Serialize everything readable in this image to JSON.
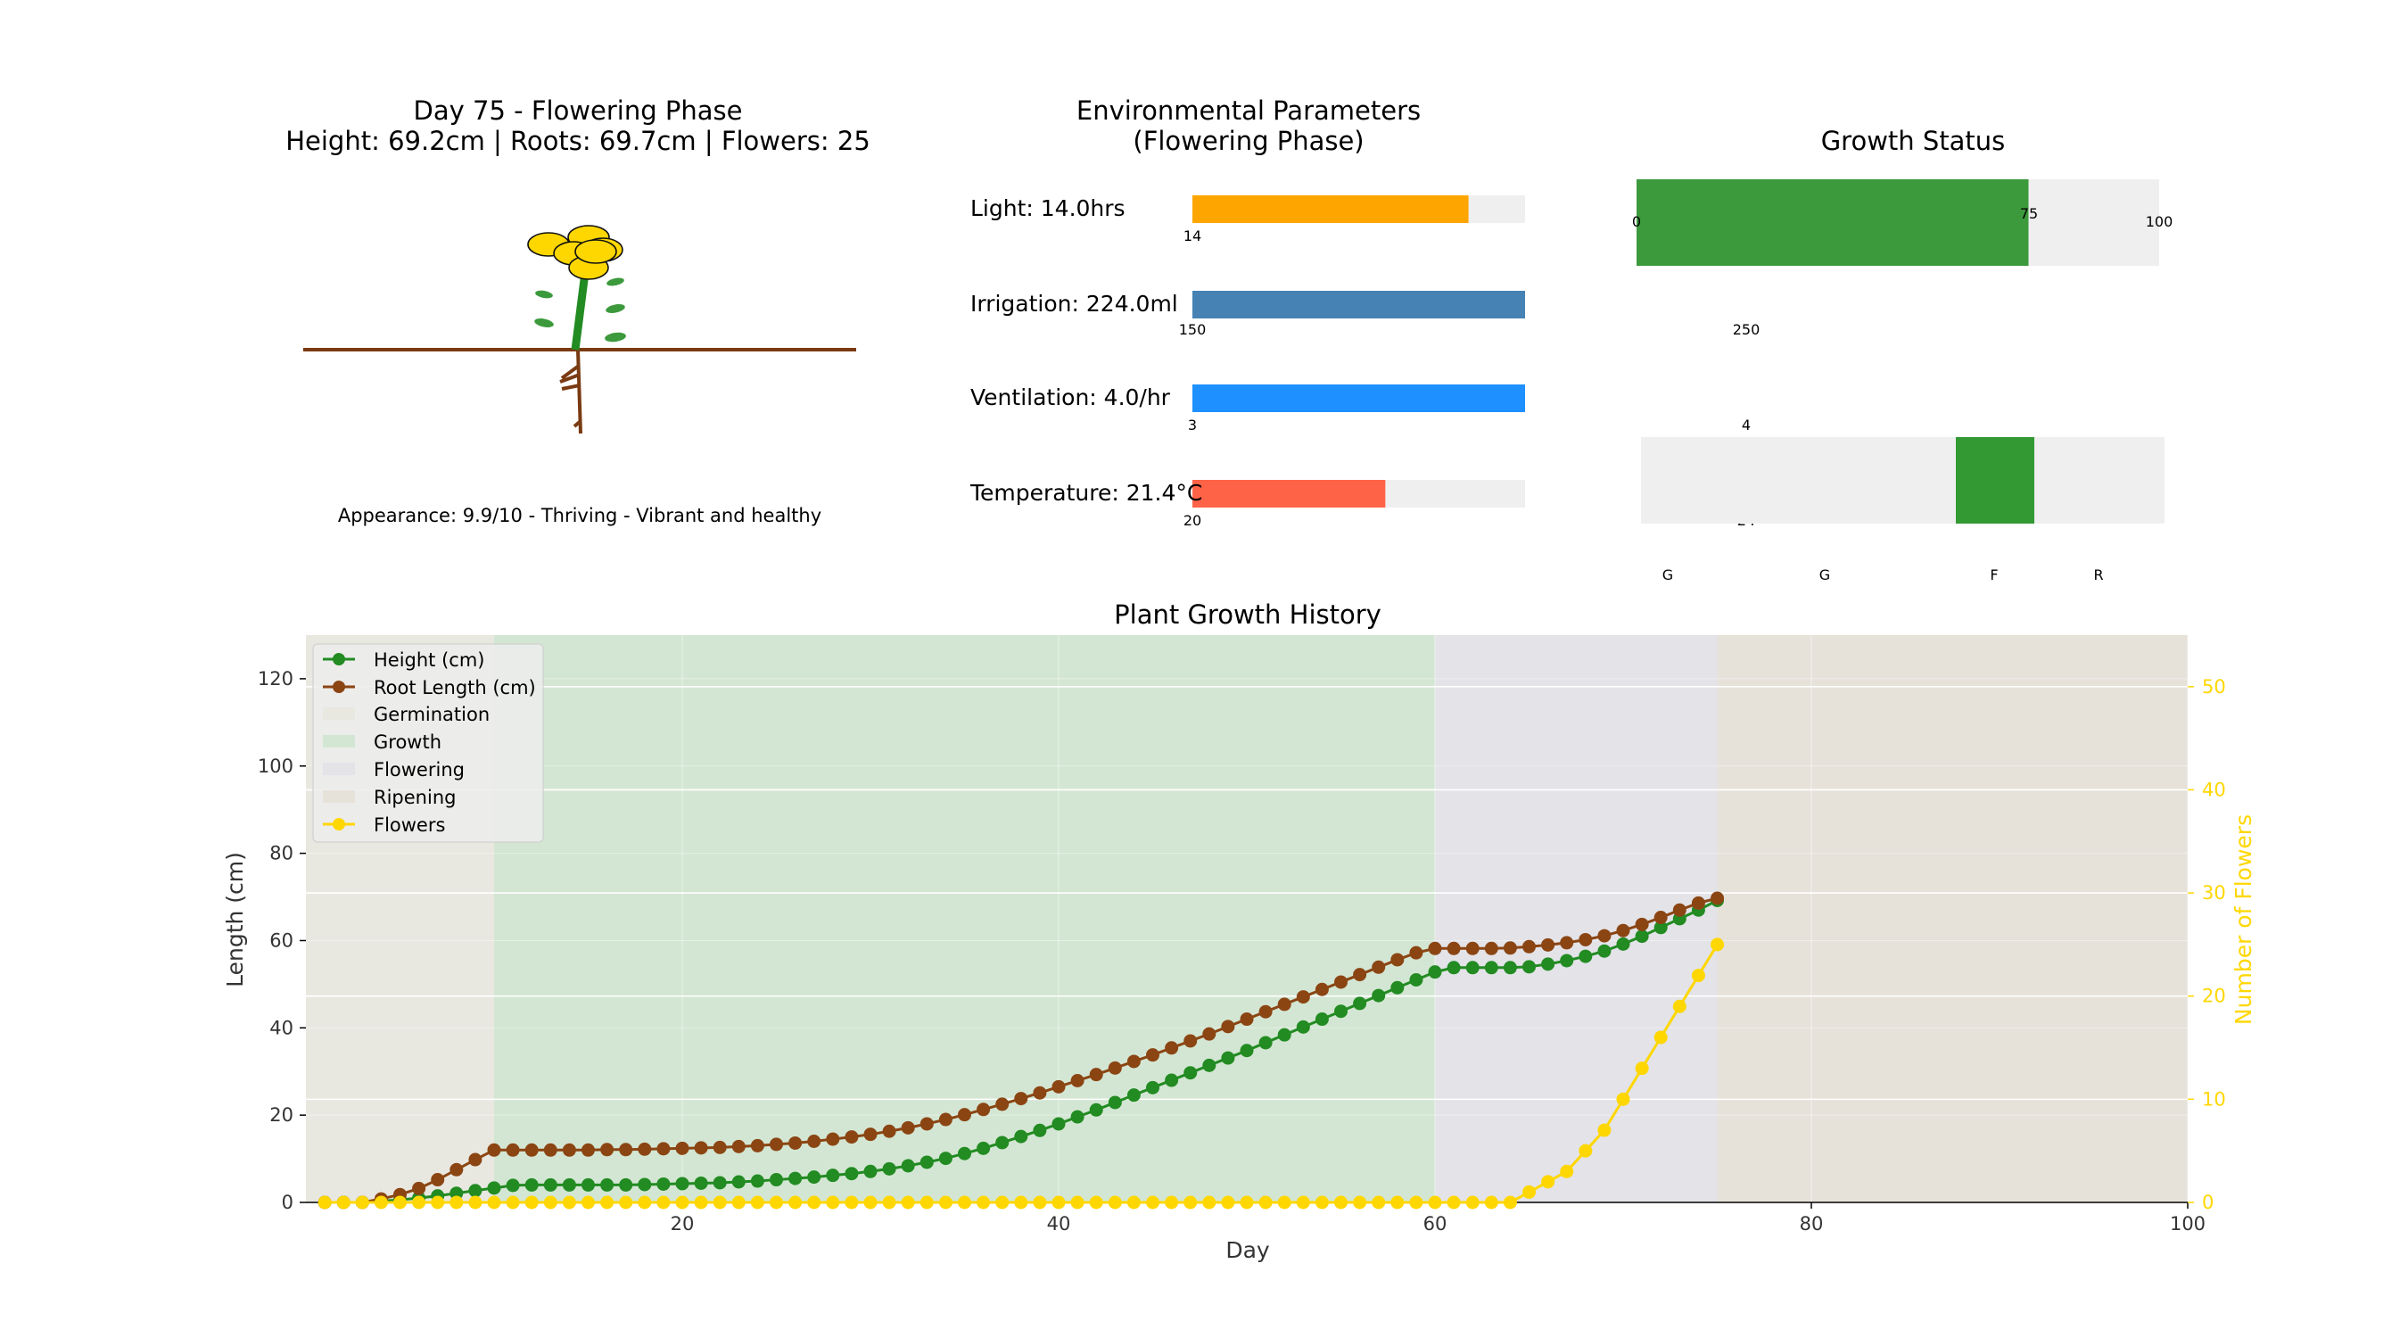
{
  "plant_panel": {
    "title_line1": "Day 75 - Flowering Phase",
    "title_line2": "Height: 69.2cm | Roots: 69.7cm | Flowers: 25",
    "appearance": "Appearance: 9.9/10 - Thriving - Vibrant and healthy"
  },
  "env_panel": {
    "title_line1": "Environmental Parameters",
    "title_line2": "(Flowering Phase)",
    "bars": [
      {
        "label": "Light: 14.0hrs",
        "min_label": "14",
        "value": 14.0,
        "fill_fraction": 0.83,
        "color": "#ffa500"
      },
      {
        "label": "Irrigation: 224.0ml",
        "min_label": "150",
        "mid_label": "250",
        "value": 224.0,
        "fill_fraction": 1.0,
        "color": "#4682b4"
      },
      {
        "label": "Ventilation: 4.0/hr",
        "min_label": "3",
        "mid_label": "4",
        "value": 4.0,
        "fill_fraction": 1.0,
        "color": "#1e90ff"
      },
      {
        "label": "Temperature: 21.4°C",
        "min_label": "20",
        "mid_label": "24",
        "value": 21.4,
        "fill_fraction": 0.58,
        "color": "#ff6347"
      }
    ]
  },
  "status_panel": {
    "title": "Growth Status",
    "progress": {
      "value": 75,
      "max": 100,
      "tick_labels": [
        "0",
        "75",
        "100"
      ],
      "color": "#3c9a3c"
    },
    "phase_labels": [
      "G",
      "G",
      "F",
      "R"
    ],
    "active_phase_index": 2,
    "active_color": "#339933"
  },
  "chart_data": {
    "type": "line",
    "title": "Plant Growth History",
    "xlabel": "Day",
    "ylabel": "Length (cm)",
    "y2label": "Number of Flowers",
    "xlim": [
      0,
      100
    ],
    "ylim": [
      0,
      130
    ],
    "y2lim": [
      0,
      55
    ],
    "xticks": [
      20,
      40,
      60,
      80,
      100
    ],
    "yticks": [
      0,
      20,
      40,
      60,
      80,
      100,
      120
    ],
    "y2ticks": [
      0,
      10,
      20,
      30,
      40,
      50
    ],
    "grid": true,
    "legend_position": "top-left",
    "phases": [
      {
        "name": "Germination",
        "start": 0,
        "end": 10,
        "color": "#e8e8e0"
      },
      {
        "name": "Growth",
        "start": 10,
        "end": 60,
        "color": "#d3e6d3"
      },
      {
        "name": "Flowering",
        "start": 60,
        "end": 75,
        "color": "#e3e3e8"
      },
      {
        "name": "Ripening",
        "start": 75,
        "end": 100,
        "color": "#e6e2da"
      }
    ],
    "series": [
      {
        "name": "Height (cm)",
        "axis": "left",
        "color": "#228b22",
        "x": [
          1,
          2,
          3,
          4,
          5,
          6,
          7,
          8,
          9,
          10,
          11,
          12,
          13,
          14,
          15,
          16,
          17,
          18,
          19,
          20,
          21,
          22,
          23,
          24,
          25,
          26,
          27,
          28,
          29,
          30,
          31,
          32,
          33,
          34,
          35,
          36,
          37,
          38,
          39,
          40,
          41,
          42,
          43,
          44,
          45,
          46,
          47,
          48,
          49,
          50,
          51,
          52,
          53,
          54,
          55,
          56,
          57,
          58,
          59,
          60,
          61,
          62,
          63,
          64,
          65,
          66,
          67,
          68,
          69,
          70,
          71,
          72,
          73,
          74,
          75
        ],
        "values": [
          0,
          0,
          0,
          0.3,
          0.6,
          1.0,
          1.5,
          2.1,
          2.7,
          3.3,
          3.9,
          4.0,
          4.0,
          4.0,
          4.0,
          4.0,
          4.0,
          4.1,
          4.2,
          4.3,
          4.4,
          4.5,
          4.7,
          4.9,
          5.2,
          5.5,
          5.8,
          6.2,
          6.6,
          7.1,
          7.7,
          8.4,
          9.2,
          10.1,
          11.2,
          12.4,
          13.7,
          15.1,
          16.5,
          18.0,
          19.6,
          21.2,
          22.9,
          24.6,
          26.3,
          28.0,
          29.7,
          31.4,
          33.1,
          34.8,
          36.6,
          38.4,
          40.2,
          42.0,
          43.8,
          45.6,
          47.4,
          49.2,
          51.0,
          52.8,
          53.8,
          53.8,
          53.8,
          53.8,
          54.0,
          54.6,
          55.4,
          56.4,
          57.6,
          59.2,
          61.0,
          63.0,
          65.0,
          67.0,
          69.2
        ]
      },
      {
        "name": "Root Length (cm)",
        "axis": "left",
        "color": "#8b4513",
        "x": [
          1,
          2,
          3,
          4,
          5,
          6,
          7,
          8,
          9,
          10,
          11,
          12,
          13,
          14,
          15,
          16,
          17,
          18,
          19,
          20,
          21,
          22,
          23,
          24,
          25,
          26,
          27,
          28,
          29,
          30,
          31,
          32,
          33,
          34,
          35,
          36,
          37,
          38,
          39,
          40,
          41,
          42,
          43,
          44,
          45,
          46,
          47,
          48,
          49,
          50,
          51,
          52,
          53,
          54,
          55,
          56,
          57,
          58,
          59,
          60,
          61,
          62,
          63,
          64,
          65,
          66,
          67,
          68,
          69,
          70,
          71,
          72,
          73,
          74,
          75
        ],
        "values": [
          0,
          0,
          0,
          0.8,
          1.8,
          3.2,
          5.2,
          7.5,
          9.8,
          12.0,
          12.0,
          12.0,
          12.0,
          12.0,
          12.0,
          12.1,
          12.1,
          12.2,
          12.3,
          12.4,
          12.5,
          12.6,
          12.8,
          13.0,
          13.3,
          13.6,
          14.0,
          14.5,
          15.0,
          15.6,
          16.3,
          17.1,
          18.0,
          19.0,
          20.1,
          21.3,
          22.5,
          23.8,
          25.1,
          26.5,
          27.9,
          29.3,
          30.8,
          32.3,
          33.8,
          35.4,
          37.0,
          38.6,
          40.3,
          42.0,
          43.7,
          45.4,
          47.1,
          48.8,
          50.5,
          52.2,
          53.9,
          55.6,
          57.2,
          58.2,
          58.2,
          58.2,
          58.2,
          58.3,
          58.6,
          59.0,
          59.5,
          60.2,
          61.1,
          62.3,
          63.7,
          65.3,
          67.0,
          68.6,
          69.7
        ]
      },
      {
        "name": "Flowers",
        "axis": "right",
        "color": "#ffd700",
        "x": [
          1,
          2,
          3,
          4,
          5,
          6,
          7,
          8,
          9,
          10,
          11,
          12,
          13,
          14,
          15,
          16,
          17,
          18,
          19,
          20,
          21,
          22,
          23,
          24,
          25,
          26,
          27,
          28,
          29,
          30,
          31,
          32,
          33,
          34,
          35,
          36,
          37,
          38,
          39,
          40,
          41,
          42,
          43,
          44,
          45,
          46,
          47,
          48,
          49,
          50,
          51,
          52,
          53,
          54,
          55,
          56,
          57,
          58,
          59,
          60,
          61,
          62,
          63,
          64,
          65,
          66,
          67,
          68,
          69,
          70,
          71,
          72,
          73,
          74,
          75
        ],
        "values": [
          0,
          0,
          0,
          0,
          0,
          0,
          0,
          0,
          0,
          0,
          0,
          0,
          0,
          0,
          0,
          0,
          0,
          0,
          0,
          0,
          0,
          0,
          0,
          0,
          0,
          0,
          0,
          0,
          0,
          0,
          0,
          0,
          0,
          0,
          0,
          0,
          0,
          0,
          0,
          0,
          0,
          0,
          0,
          0,
          0,
          0,
          0,
          0,
          0,
          0,
          0,
          0,
          0,
          0,
          0,
          0,
          0,
          0,
          0,
          0,
          0,
          0,
          0,
          0,
          1,
          2,
          3,
          5,
          7,
          10,
          13,
          16,
          19,
          22,
          25
        ]
      }
    ],
    "legend": [
      "Height (cm)",
      "Root Length (cm)",
      "Germination",
      "Growth",
      "Flowering",
      "Ripening",
      "Flowers"
    ]
  }
}
